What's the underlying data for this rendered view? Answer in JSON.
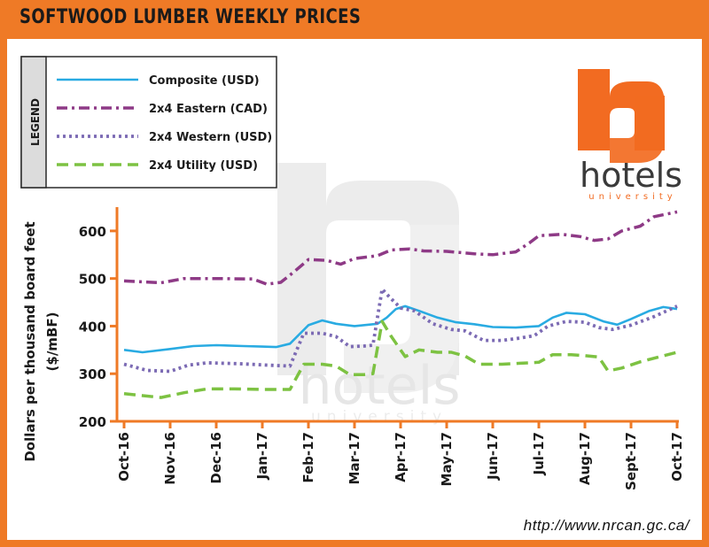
{
  "title": "SOFTWOOD LUMBER WEEKLY PRICES",
  "source_url": "http://www.nrcan.gc.ca/",
  "logo": {
    "brand": "hotels",
    "subtitle": "university",
    "accent_color": "#f26b21"
  },
  "chart_data": {
    "type": "line",
    "ylabel": "Dollars per thousand board feet",
    "ylabel_unit": "($/mBF)",
    "ylim": [
      200,
      650
    ],
    "y_ticks": [
      200,
      300,
      400,
      500,
      600
    ],
    "x_range": [
      0,
      12
    ],
    "x_tick_labels": [
      "Oct-16",
      "Nov-16",
      "Dec-16",
      "Jan-17",
      "Feb-17",
      "Mar-17",
      "Apr-17",
      "May-17",
      "Jun-17",
      "Jul-17",
      "Aug-17",
      "Sept-17",
      "Oct-17"
    ],
    "legend": {
      "title": "LEGEND",
      "placement": "top-left"
    },
    "grid": false,
    "series": [
      {
        "name": "Composite (USD)",
        "color": "#29abe2",
        "dash": "solid",
        "points": [
          [
            0,
            350
          ],
          [
            0.4,
            345
          ],
          [
            1,
            352
          ],
          [
            1.5,
            358
          ],
          [
            2,
            360
          ],
          [
            2.6,
            358
          ],
          [
            3,
            357
          ],
          [
            3.3,
            356
          ],
          [
            3.6,
            363
          ],
          [
            4,
            402
          ],
          [
            4.3,
            412
          ],
          [
            4.6,
            405
          ],
          [
            5,
            400
          ],
          [
            5.5,
            405
          ],
          [
            5.7,
            418
          ],
          [
            5.9,
            436
          ],
          [
            6.1,
            442
          ],
          [
            6.4,
            432
          ],
          [
            6.8,
            418
          ],
          [
            7.2,
            408
          ],
          [
            7.6,
            404
          ],
          [
            8,
            398
          ],
          [
            8.5,
            397
          ],
          [
            9,
            400
          ],
          [
            9.3,
            418
          ],
          [
            9.6,
            428
          ],
          [
            10,
            425
          ],
          [
            10.4,
            410
          ],
          [
            10.7,
            403
          ],
          [
            11,
            415
          ],
          [
            11.4,
            432
          ],
          [
            11.7,
            440
          ],
          [
            12,
            436
          ]
        ]
      },
      {
        "name": "2x4 Eastern (CAD)",
        "color": "#8e3a86",
        "dash": "dashdot",
        "points": [
          [
            0,
            495
          ],
          [
            0.8,
            491
          ],
          [
            1.3,
            500
          ],
          [
            2,
            500
          ],
          [
            2.8,
            499
          ],
          [
            3.1,
            488
          ],
          [
            3.4,
            492
          ],
          [
            3.7,
            515
          ],
          [
            4,
            540
          ],
          [
            4.4,
            538
          ],
          [
            4.7,
            530
          ],
          [
            5,
            542
          ],
          [
            5.5,
            548
          ],
          [
            5.8,
            560
          ],
          [
            6.2,
            562
          ],
          [
            6.5,
            558
          ],
          [
            7,
            557
          ],
          [
            7.6,
            552
          ],
          [
            8,
            550
          ],
          [
            8.5,
            556
          ],
          [
            8.8,
            575
          ],
          [
            9,
            590
          ],
          [
            9.5,
            593
          ],
          [
            9.9,
            588
          ],
          [
            10.2,
            580
          ],
          [
            10.5,
            583
          ],
          [
            10.8,
            600
          ],
          [
            11.2,
            610
          ],
          [
            11.5,
            630
          ],
          [
            12,
            640
          ]
        ]
      },
      {
        "name": "2x4 Western (USD)",
        "color": "#7c6bb4",
        "dash": "dotted",
        "points": [
          [
            0,
            320
          ],
          [
            0.5,
            307
          ],
          [
            1,
            305
          ],
          [
            1.4,
            318
          ],
          [
            1.8,
            323
          ],
          [
            2.5,
            321
          ],
          [
            3.1,
            318
          ],
          [
            3.6,
            316
          ],
          [
            3.9,
            385
          ],
          [
            4.3,
            385
          ],
          [
            4.6,
            378
          ],
          [
            4.9,
            357
          ],
          [
            5.2,
            358
          ],
          [
            5.4,
            360
          ],
          [
            5.6,
            478
          ],
          [
            5.75,
            462
          ],
          [
            6,
            438
          ],
          [
            6.3,
            432
          ],
          [
            6.7,
            405
          ],
          [
            7.1,
            393
          ],
          [
            7.4,
            390
          ],
          [
            7.8,
            370
          ],
          [
            8.2,
            370
          ],
          [
            8.6,
            375
          ],
          [
            8.9,
            380
          ],
          [
            9.2,
            400
          ],
          [
            9.6,
            410
          ],
          [
            10,
            408
          ],
          [
            10.3,
            397
          ],
          [
            10.6,
            393
          ],
          [
            11,
            402
          ],
          [
            11.5,
            420
          ],
          [
            12,
            442
          ]
        ]
      },
      {
        "name": "2x4 Utility (USD)",
        "color": "#7dc242",
        "dash": "dashed",
        "points": [
          [
            0,
            258
          ],
          [
            0.8,
            250
          ],
          [
            1.3,
            260
          ],
          [
            1.8,
            268
          ],
          [
            2.4,
            268
          ],
          [
            3,
            267
          ],
          [
            3.6,
            267
          ],
          [
            3.9,
            320
          ],
          [
            4.3,
            320
          ],
          [
            4.6,
            316
          ],
          [
            4.9,
            298
          ],
          [
            5.2,
            298
          ],
          [
            5.4,
            300
          ],
          [
            5.6,
            410
          ],
          [
            5.8,
            378
          ],
          [
            6.1,
            336
          ],
          [
            6.4,
            350
          ],
          [
            6.8,
            345
          ],
          [
            7.1,
            345
          ],
          [
            7.4,
            337
          ],
          [
            7.7,
            320
          ],
          [
            8.2,
            320
          ],
          [
            8.6,
            322
          ],
          [
            9,
            324
          ],
          [
            9.3,
            340
          ],
          [
            9.7,
            340
          ],
          [
            10,
            338
          ],
          [
            10.3,
            335
          ],
          [
            10.5,
            306
          ],
          [
            10.8,
            312
          ],
          [
            11.2,
            325
          ],
          [
            11.6,
            335
          ],
          [
            12,
            345
          ]
        ]
      }
    ]
  }
}
